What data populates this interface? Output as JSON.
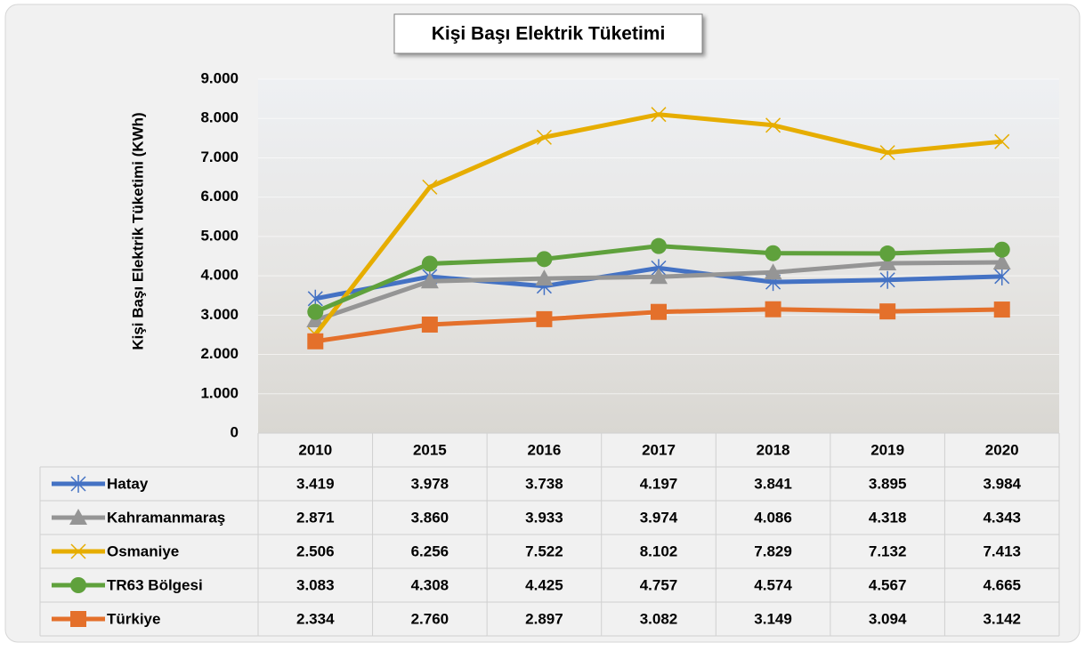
{
  "chart_data": {
    "type": "line",
    "title": "Kişi Başı Elektrik Tüketimi",
    "ylabel": "Kişi Başı Elektrik Tüketimi (KWh)",
    "categories": [
      "2010",
      "2015",
      "2016",
      "2017",
      "2018",
      "2019",
      "2020"
    ],
    "ylim": [
      0,
      9000
    ],
    "yticks": [
      0,
      {
        "value": 1000,
        "label": "1.000"
      },
      {
        "value": 2000,
        "label": "2.000"
      },
      {
        "value": 3000,
        "label": "3.000"
      },
      {
        "value": 4000,
        "label": "4.000"
      },
      {
        "value": 5000,
        "label": "5.000"
      },
      {
        "value": 6000,
        "label": "6.000"
      },
      {
        "value": 7000,
        "label": "7.000"
      },
      {
        "value": 8000,
        "label": "8.000"
      },
      {
        "value": 9000,
        "label": "9.000"
      }
    ],
    "grid": true,
    "series": [
      {
        "name": "Hatay",
        "color": "#4472c4",
        "marker": "star",
        "values": [
          3419,
          3978,
          3738,
          4197,
          3841,
          3895,
          3984
        ],
        "value_labels": [
          "3.419",
          "3.978",
          "3.738",
          "4.197",
          "3.841",
          "3.895",
          "3.984"
        ]
      },
      {
        "name": "Kahramanmaraş",
        "color": "#959595",
        "marker": "triangle",
        "values": [
          2871,
          3860,
          3933,
          3974,
          4086,
          4318,
          4343
        ],
        "value_labels": [
          "2.871",
          "3.860",
          "3.933",
          "3.974",
          "4.086",
          "4.318",
          "4.343"
        ]
      },
      {
        "name": "Osmaniye",
        "color": "#e6ad00",
        "marker": "x",
        "values": [
          2506,
          6256,
          7522,
          8102,
          7829,
          7132,
          7413
        ],
        "value_labels": [
          "2.506",
          "6.256",
          "7.522",
          "8.102",
          "7.829",
          "7.132",
          "7.413"
        ]
      },
      {
        "name": "TR63 Bölgesi",
        "color": "#5fa13c",
        "marker": "circle",
        "values": [
          3083,
          4308,
          4425,
          4757,
          4574,
          4567,
          4665
        ],
        "value_labels": [
          "3.083",
          "4.308",
          "4.425",
          "4.757",
          "4.574",
          "4.567",
          "4.665"
        ]
      },
      {
        "name": "Türkiye",
        "color": "#e4702b",
        "marker": "square",
        "values": [
          2334,
          2760,
          2897,
          3082,
          3149,
          3094,
          3142
        ],
        "value_labels": [
          "2.334",
          "2.760",
          "2.897",
          "3.082",
          "3.149",
          "3.094",
          "3.142"
        ]
      }
    ]
  }
}
